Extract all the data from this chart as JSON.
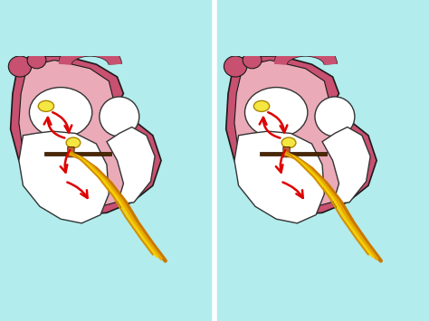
{
  "bg_color": "#b2ecec",
  "heart_outer_color": "#c85070",
  "heart_inner_color": "#eaaab8",
  "chamber_color": "#ffffff",
  "sa_node_color": "#f5e642",
  "av_node_color": "#f5e642",
  "arrow_color": "#dd0000",
  "ablation_color": "#c06030",
  "valve_color": "#5a3010",
  "border_color": "#1a1a1a",
  "fig_width": 4.74,
  "fig_height": 3.55
}
